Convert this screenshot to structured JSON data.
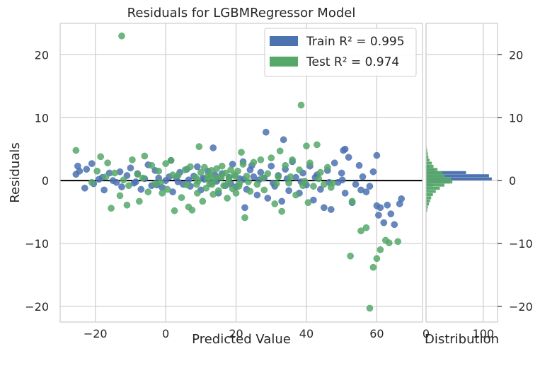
{
  "chart_data": [
    {
      "type": "scatter",
      "title": "Residuals for LGBMRegressor Model",
      "xlabel": "Predicted Value",
      "ylabel": "Residuals",
      "xlim": [
        -30,
        73
      ],
      "ylim": [
        -22.5,
        25
      ],
      "xticks": [
        "−20",
        "0",
        "20",
        "40",
        "60"
      ],
      "xtick_values": [
        -20,
        0,
        20,
        40,
        60
      ],
      "yticks": [
        "−20",
        "−10",
        "0",
        "10",
        "20"
      ],
      "ytick_values": [
        -20,
        -10,
        0,
        10,
        20
      ],
      "grid": true,
      "zero_line": 0,
      "legend_position": "top-right",
      "colors": {
        "train": "#4c72b0",
        "test": "#55a868",
        "zero_line": "#000000",
        "grid": "#cccccc",
        "spine": "#cccccc"
      },
      "legend": [
        {
          "label_prefix": "Train ",
          "r2_text": "R² = 0.995"
        },
        {
          "label_prefix": "Test ",
          "r2_text": "R² = 0.974"
        }
      ],
      "series": [
        {
          "name": "Train R² = 0.995",
          "points": [
            [
              -25.5,
              1.0
            ],
            [
              -25,
              2.3
            ],
            [
              -24.5,
              1.5
            ],
            [
              -23,
              -1.2
            ],
            [
              -22.5,
              1.8
            ],
            [
              -21,
              2.7
            ],
            [
              -20.5,
              -0.5
            ],
            [
              -19,
              0.2
            ],
            [
              -18,
              0.5
            ],
            [
              -17.5,
              -1.5
            ],
            [
              -16,
              1.2
            ],
            [
              -15,
              0.0
            ],
            [
              -14,
              -0.3
            ],
            [
              -13,
              1.4
            ],
            [
              -12.5,
              -1.0
            ],
            [
              -11,
              0.8
            ],
            [
              -10,
              2.0
            ],
            [
              -9,
              -0.4
            ],
            [
              -8,
              1.1
            ],
            [
              -7,
              -1.4
            ],
            [
              -6,
              0.3
            ],
            [
              -5,
              2.5
            ],
            [
              -4,
              -0.8
            ],
            [
              -3,
              1.6
            ],
            [
              -2,
              0.4
            ],
            [
              -1,
              -1.1
            ],
            [
              0,
              0.0
            ],
            [
              1,
              0.6
            ],
            [
              1.5,
              3.2
            ],
            [
              2,
              -1.8
            ],
            [
              3,
              0.5
            ],
            [
              4,
              1.3
            ],
            [
              5,
              -0.6
            ],
            [
              6,
              1.8
            ],
            [
              7,
              -0.9
            ],
            [
              8,
              0.7
            ],
            [
              9,
              2.2
            ],
            [
              10,
              -1.5
            ],
            [
              11,
              0.2
            ],
            [
              12,
              1.5
            ],
            [
              13,
              -0.3
            ],
            [
              14,
              0.9
            ],
            [
              13.5,
              5.2
            ],
            [
              15,
              -2.0
            ],
            [
              16,
              1.1
            ],
            [
              17,
              -0.8
            ],
            [
              18,
              0.5
            ],
            [
              19,
              2.6
            ],
            [
              20,
              -1.0
            ],
            [
              21,
              0.3
            ],
            [
              22,
              3.0
            ],
            [
              22.5,
              -4.3
            ],
            [
              23,
              -1.4
            ],
            [
              24,
              1.7
            ],
            [
              25,
              0.6
            ],
            [
              26,
              -2.3
            ],
            [
              27,
              1.3
            ],
            [
              28,
              0.4
            ],
            [
              28.5,
              7.7
            ],
            [
              29,
              -2.8
            ],
            [
              30,
              2.3
            ],
            [
              31,
              -0.9
            ],
            [
              32,
              0.8
            ],
            [
              33,
              -3.3
            ],
            [
              33.5,
              6.5
            ],
            [
              34,
              1.8
            ],
            [
              35,
              -1.6
            ],
            [
              36,
              3.0
            ],
            [
              37,
              0.5
            ],
            [
              38,
              -2.0
            ],
            [
              39,
              1.2
            ],
            [
              40,
              -0.7
            ],
            [
              41,
              2.3
            ],
            [
              42,
              -3.1
            ],
            [
              43,
              0.9
            ],
            [
              44,
              -1.4
            ],
            [
              45,
              -4.3
            ],
            [
              46,
              1.6
            ],
            [
              47,
              -4.6
            ],
            [
              48,
              2.8
            ],
            [
              49,
              -0.3
            ],
            [
              50,
              1.2
            ],
            [
              50.5,
              4.8
            ],
            [
              51,
              -2.0
            ],
            [
              52,
              3.7
            ],
            [
              53,
              -3.5
            ],
            [
              54,
              -0.6
            ],
            [
              55,
              2.4
            ],
            [
              55.5,
              -1.5
            ],
            [
              56,
              0.6
            ],
            [
              57,
              -1.8
            ],
            [
              58,
              -0.9
            ],
            [
              59,
              1.4
            ],
            [
              60,
              -4.0
            ],
            [
              60.5,
              -5.5
            ],
            [
              61,
              -4.3
            ],
            [
              62,
              -6.7
            ],
            [
              63,
              -3.9
            ],
            [
              64,
              -5.3
            ],
            [
              65,
              -7.0
            ],
            [
              66.5,
              -3.7
            ],
            [
              67,
              -2.9
            ],
            [
              60,
              4.0
            ],
            [
              51,
              5.0
            ],
            [
              -8.5,
              -0.2
            ],
            [
              -2.5,
              -0.7
            ],
            [
              3.5,
              -0.2
            ],
            [
              6.5,
              0.1
            ],
            [
              10.5,
              0.4
            ],
            [
              14.5,
              -0.1
            ],
            [
              18.5,
              -0.5
            ],
            [
              22.2,
              0.2
            ],
            [
              26.5,
              0.1
            ],
            [
              30.5,
              -0.4
            ],
            [
              34.5,
              0.3
            ],
            [
              38.5,
              -0.2
            ],
            [
              42.5,
              0.5
            ],
            [
              46.5,
              -0.3
            ],
            [
              50.2,
              0.1
            ],
            [
              24.5,
              2.4
            ]
          ]
        },
        {
          "name": "Test R² = 0.974",
          "points": [
            [
              -12.5,
              23.0
            ],
            [
              38.5,
              12.0
            ],
            [
              -25.5,
              4.8
            ],
            [
              -18.5,
              3.8
            ],
            [
              -16.5,
              2.8
            ],
            [
              -15.5,
              -4.4
            ],
            [
              -13,
              -2.4
            ],
            [
              -11,
              -3.9
            ],
            [
              -9.5,
              3.3
            ],
            [
              -8,
              1.0
            ],
            [
              -7.5,
              -3.3
            ],
            [
              -6,
              3.9
            ],
            [
              -5,
              -1.8
            ],
            [
              -4,
              2.4
            ],
            [
              -3,
              -0.5
            ],
            [
              -2,
              1.5
            ],
            [
              -1,
              -2.0
            ],
            [
              0,
              2.7
            ],
            [
              0.5,
              -1.4
            ],
            [
              1.5,
              3.2
            ],
            [
              2.5,
              -4.8
            ],
            [
              3.5,
              0.8
            ],
            [
              4.5,
              -2.7
            ],
            [
              5.5,
              1.7
            ],
            [
              6.5,
              -4.2
            ],
            [
              7,
              2.2
            ],
            [
              7.5,
              -4.7
            ],
            [
              8.5,
              0.5
            ],
            [
              9,
              -2.0
            ],
            [
              9.5,
              5.4
            ],
            [
              10,
              1.3
            ],
            [
              10.5,
              -3.3
            ],
            [
              11,
              2.1
            ],
            [
              11.5,
              -1.2
            ],
            [
              12,
              0.8
            ],
            [
              12.5,
              -0.5
            ],
            [
              13,
              1.6
            ],
            [
              13.5,
              -2.2
            ],
            [
              14,
              0.3
            ],
            [
              14.5,
              1.9
            ],
            [
              15,
              -1.6
            ],
            [
              15.5,
              0.6
            ],
            [
              16,
              2.3
            ],
            [
              16.5,
              -0.8
            ],
            [
              17,
              1.2
            ],
            [
              17.5,
              -2.8
            ],
            [
              18,
              0.4
            ],
            [
              18.5,
              1.7
            ],
            [
              19,
              -1.3
            ],
            [
              19.5,
              0.9
            ],
            [
              20,
              -2.0
            ],
            [
              20.5,
              1.5
            ],
            [
              21,
              -0.4
            ],
            [
              21.5,
              4.5
            ],
            [
              22,
              2.6
            ],
            [
              22.5,
              -5.9
            ],
            [
              23,
              0.7
            ],
            [
              24,
              -1.7
            ],
            [
              25,
              2.9
            ],
            [
              26,
              -0.6
            ],
            [
              27,
              3.3
            ],
            [
              28,
              -1.5
            ],
            [
              29,
              1.1
            ],
            [
              30,
              3.6
            ],
            [
              31,
              -3.7
            ],
            [
              32,
              0.6
            ],
            [
              32.5,
              4.7
            ],
            [
              33,
              -4.9
            ],
            [
              34,
              2.4
            ],
            [
              35,
              -0.4
            ],
            [
              36,
              3.3
            ],
            [
              37,
              -2.3
            ],
            [
              38,
              1.7
            ],
            [
              39,
              -0.8
            ],
            [
              40,
              5.5
            ],
            [
              40.5,
              -3.5
            ],
            [
              41,
              2.8
            ],
            [
              42,
              -0.9
            ],
            [
              43,
              5.7
            ],
            [
              44,
              1.3
            ],
            [
              45,
              -0.6
            ],
            [
              46,
              2.1
            ],
            [
              47,
              -1.1
            ],
            [
              53,
              -3.3
            ],
            [
              55.5,
              -8.0
            ],
            [
              57,
              -7.5
            ],
            [
              58,
              -20.3
            ],
            [
              59,
              -13.8
            ],
            [
              60,
              -12.4
            ],
            [
              61,
              -11.0
            ],
            [
              62.5,
              -9.5
            ],
            [
              63.5,
              -9.9
            ],
            [
              66,
              -9.7
            ],
            [
              52.5,
              -12.0
            ],
            [
              -21,
              -0.3
            ],
            [
              -19.5,
              1.5
            ],
            [
              -17,
              0.6
            ],
            [
              -14.5,
              1.2
            ],
            [
              -12,
              0.1
            ],
            [
              -10.5,
              -0.8
            ],
            [
              -6.5,
              0.4
            ],
            [
              -1.5,
              -0.3
            ],
            [
              2,
              0.9
            ],
            [
              6,
              -0.7
            ],
            [
              9.2,
              -0.1
            ],
            [
              11.8,
              0.3
            ],
            [
              13.2,
              -0.6
            ],
            [
              15.8,
              0.5
            ],
            [
              17.8,
              -0.3
            ],
            [
              19.8,
              0.7
            ],
            [
              23.5,
              -0.2
            ],
            [
              27.5,
              0.4
            ],
            [
              31.5,
              -0.5
            ],
            [
              35.5,
              0.6
            ],
            [
              39.5,
              -0.1
            ],
            [
              43.5,
              0.3
            ],
            [
              47.5,
              -0.4
            ],
            [
              20.8,
              -0.9
            ],
            [
              12.8,
              0.7
            ],
            [
              8.8,
              -0.6
            ]
          ]
        }
      ]
    },
    {
      "type": "bar",
      "orientation": "horizontal",
      "xlabel": "Distribution",
      "xlim": [
        0,
        125
      ],
      "xticks": [
        "0",
        "100"
      ],
      "xtick_values": [
        0,
        100
      ],
      "ylim": [
        -22.5,
        25
      ],
      "yticks": [
        "−20",
        "−10",
        "0",
        "10",
        "20"
      ],
      "ytick_values": [
        -20,
        -10,
        0,
        10,
        20
      ],
      "bin_width": 0.5,
      "series": [
        {
          "name": "Train R² = 0.995",
          "bins": [
            [
              -1.5,
              4
            ],
            [
              -1.0,
              12
            ],
            [
              -0.5,
              42
            ],
            [
              0.0,
              115
            ],
            [
              0.5,
              110
            ],
            [
              1.0,
              70
            ],
            [
              1.5,
              14
            ],
            [
              2.0,
              5
            ]
          ]
        },
        {
          "name": "Test R² = 0.974",
          "bins": [
            [
              -5.0,
              2
            ],
            [
              -4.5,
              3
            ],
            [
              -4.0,
              5
            ],
            [
              -3.5,
              7
            ],
            [
              -3.0,
              9
            ],
            [
              -2.5,
              12
            ],
            [
              -2.0,
              17
            ],
            [
              -1.5,
              24
            ],
            [
              -1.0,
              32
            ],
            [
              -0.5,
              46
            ],
            [
              0.0,
              44
            ],
            [
              0.5,
              33
            ],
            [
              1.0,
              28
            ],
            [
              1.5,
              20
            ],
            [
              2.0,
              13
            ],
            [
              2.5,
              10
            ],
            [
              3.0,
              6
            ],
            [
              3.5,
              4
            ],
            [
              4.0,
              3
            ],
            [
              4.5,
              2
            ],
            [
              5.0,
              1
            ]
          ]
        }
      ]
    }
  ]
}
